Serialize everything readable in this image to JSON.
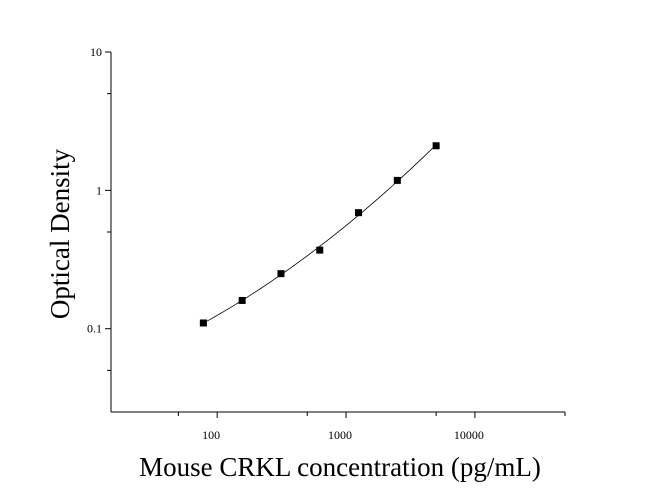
{
  "chart_data": {
    "type": "scatter",
    "xlabel": "Mouse CRKL concentration (pg/mL)",
    "ylabel": "Optical Density",
    "x_scale": "log",
    "y_scale": "log",
    "xlim": [
      15,
      50000
    ],
    "ylim": [
      0.025,
      10
    ],
    "x_ticks": [
      {
        "value": 100,
        "label": "100"
      },
      {
        "value": 1000,
        "label": "1000"
      },
      {
        "value": 10000,
        "label": "10000"
      }
    ],
    "y_ticks": [
      {
        "value": 0.1,
        "label": "0.1"
      },
      {
        "value": 1,
        "label": "1"
      },
      {
        "value": 10,
        "label": "10"
      }
    ],
    "grid": false,
    "legend": "none",
    "marker": "square",
    "has_fit_curve": true,
    "points": [
      {
        "x": 78.125,
        "y": 0.11
      },
      {
        "x": 156.25,
        "y": 0.16
      },
      {
        "x": 312.5,
        "y": 0.25
      },
      {
        "x": 625,
        "y": 0.37
      },
      {
        "x": 1250,
        "y": 0.69
      },
      {
        "x": 2500,
        "y": 1.18
      },
      {
        "x": 5000,
        "y": 2.1
      }
    ]
  }
}
